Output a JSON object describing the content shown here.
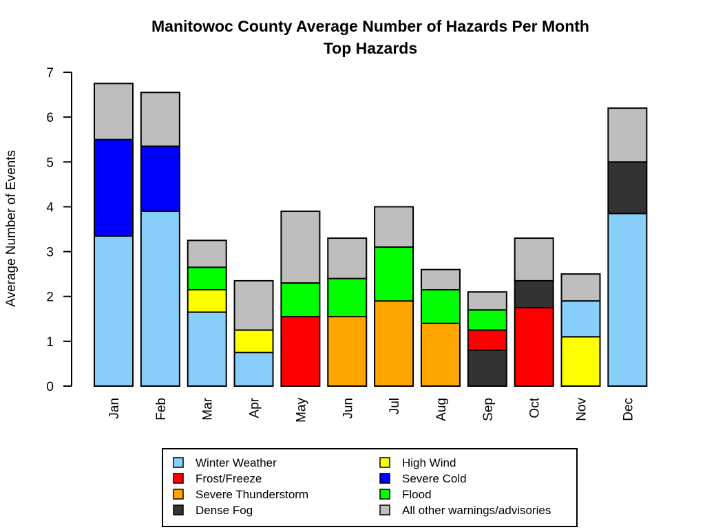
{
  "chart_data": {
    "type": "bar",
    "stacked": true,
    "title": "Manitowoc County Average Number of Hazards Per Month",
    "subtitle": "Top Hazards",
    "xlabel": "",
    "ylabel": "Average Number of Events",
    "ylim": [
      0,
      7
    ],
    "yticks": [
      0,
      1,
      2,
      3,
      4,
      5,
      6,
      7
    ],
    "grid": false,
    "legend_position": "bottom",
    "categories": [
      "Jan",
      "Feb",
      "Mar",
      "Apr",
      "May",
      "Jun",
      "Jul",
      "Aug",
      "Sep",
      "Oct",
      "Nov",
      "Dec"
    ],
    "series": [
      {
        "name": "Winter Weather",
        "color": "#87CEFA",
        "values": [
          3.35,
          3.9,
          1.65,
          0.75,
          0,
          0,
          0,
          0,
          0,
          0,
          0.8,
          3.85
        ]
      },
      {
        "name": "Frost/Freeze",
        "color": "#FF0000",
        "values": [
          0,
          0,
          0,
          0,
          1.55,
          0,
          0,
          0,
          0.45,
          1.75,
          0,
          0
        ]
      },
      {
        "name": "Severe Thunderstorm",
        "color": "#FFA500",
        "values": [
          0,
          0,
          0,
          0,
          0,
          1.55,
          1.9,
          1.4,
          0,
          0,
          0,
          0
        ]
      },
      {
        "name": "Dense Fog",
        "color": "#333333",
        "values": [
          0,
          0,
          0,
          0,
          0,
          0,
          0,
          0,
          0.8,
          0.6,
          0,
          1.15
        ]
      },
      {
        "name": "High Wind",
        "color": "#FFFF00",
        "values": [
          0,
          0,
          0.5,
          0.5,
          0,
          0,
          0,
          0,
          0,
          0,
          1.1,
          0
        ]
      },
      {
        "name": "Severe Cold",
        "color": "#0000FF",
        "values": [
          2.15,
          1.45,
          0,
          0,
          0,
          0,
          0,
          0,
          0,
          0,
          0,
          0
        ]
      },
      {
        "name": "Flood",
        "color": "#00FF00",
        "values": [
          0,
          0,
          0.5,
          0,
          0.75,
          0.85,
          1.2,
          0.75,
          0.45,
          0,
          0,
          0
        ]
      },
      {
        "name": "All other warnings/advisories",
        "color": "#BEBEBE",
        "values": [
          1.25,
          1.2,
          0.6,
          1.1,
          1.6,
          0.9,
          0.9,
          0.45,
          0.4,
          0.95,
          0.6,
          1.2
        ]
      }
    ],
    "stack_order": {
      "Jan": [
        "Winter Weather",
        "Severe Cold",
        "All other warnings/advisories"
      ],
      "Feb": [
        "Winter Weather",
        "Severe Cold",
        "All other warnings/advisories"
      ],
      "Mar": [
        "Winter Weather",
        "High Wind",
        "Flood",
        "All other warnings/advisories"
      ],
      "Apr": [
        "Winter Weather",
        "High Wind",
        "All other warnings/advisories"
      ],
      "May": [
        "Frost/Freeze",
        "Flood",
        "All other warnings/advisories"
      ],
      "Jun": [
        "Severe Thunderstorm",
        "Flood",
        "All other warnings/advisories"
      ],
      "Jul": [
        "Severe Thunderstorm",
        "Flood",
        "All other warnings/advisories"
      ],
      "Aug": [
        "Severe Thunderstorm",
        "Flood",
        "All other warnings/advisories"
      ],
      "Sep": [
        "Dense Fog",
        "Frost/Freeze",
        "Flood",
        "All other warnings/advisories"
      ],
      "Oct": [
        "Frost/Freeze",
        "Dense Fog",
        "All other warnings/advisories"
      ],
      "Nov": [
        "High Wind",
        "Winter Weather",
        "All other warnings/advisories"
      ],
      "Dec": [
        "Winter Weather",
        "Dense Fog",
        "All other warnings/advisories"
      ]
    },
    "legend_columns": [
      [
        "Winter Weather",
        "Frost/Freeze",
        "Severe Thunderstorm",
        "Dense Fog"
      ],
      [
        "High Wind",
        "Severe Cold",
        "Flood",
        "All other warnings/advisories"
      ]
    ]
  }
}
